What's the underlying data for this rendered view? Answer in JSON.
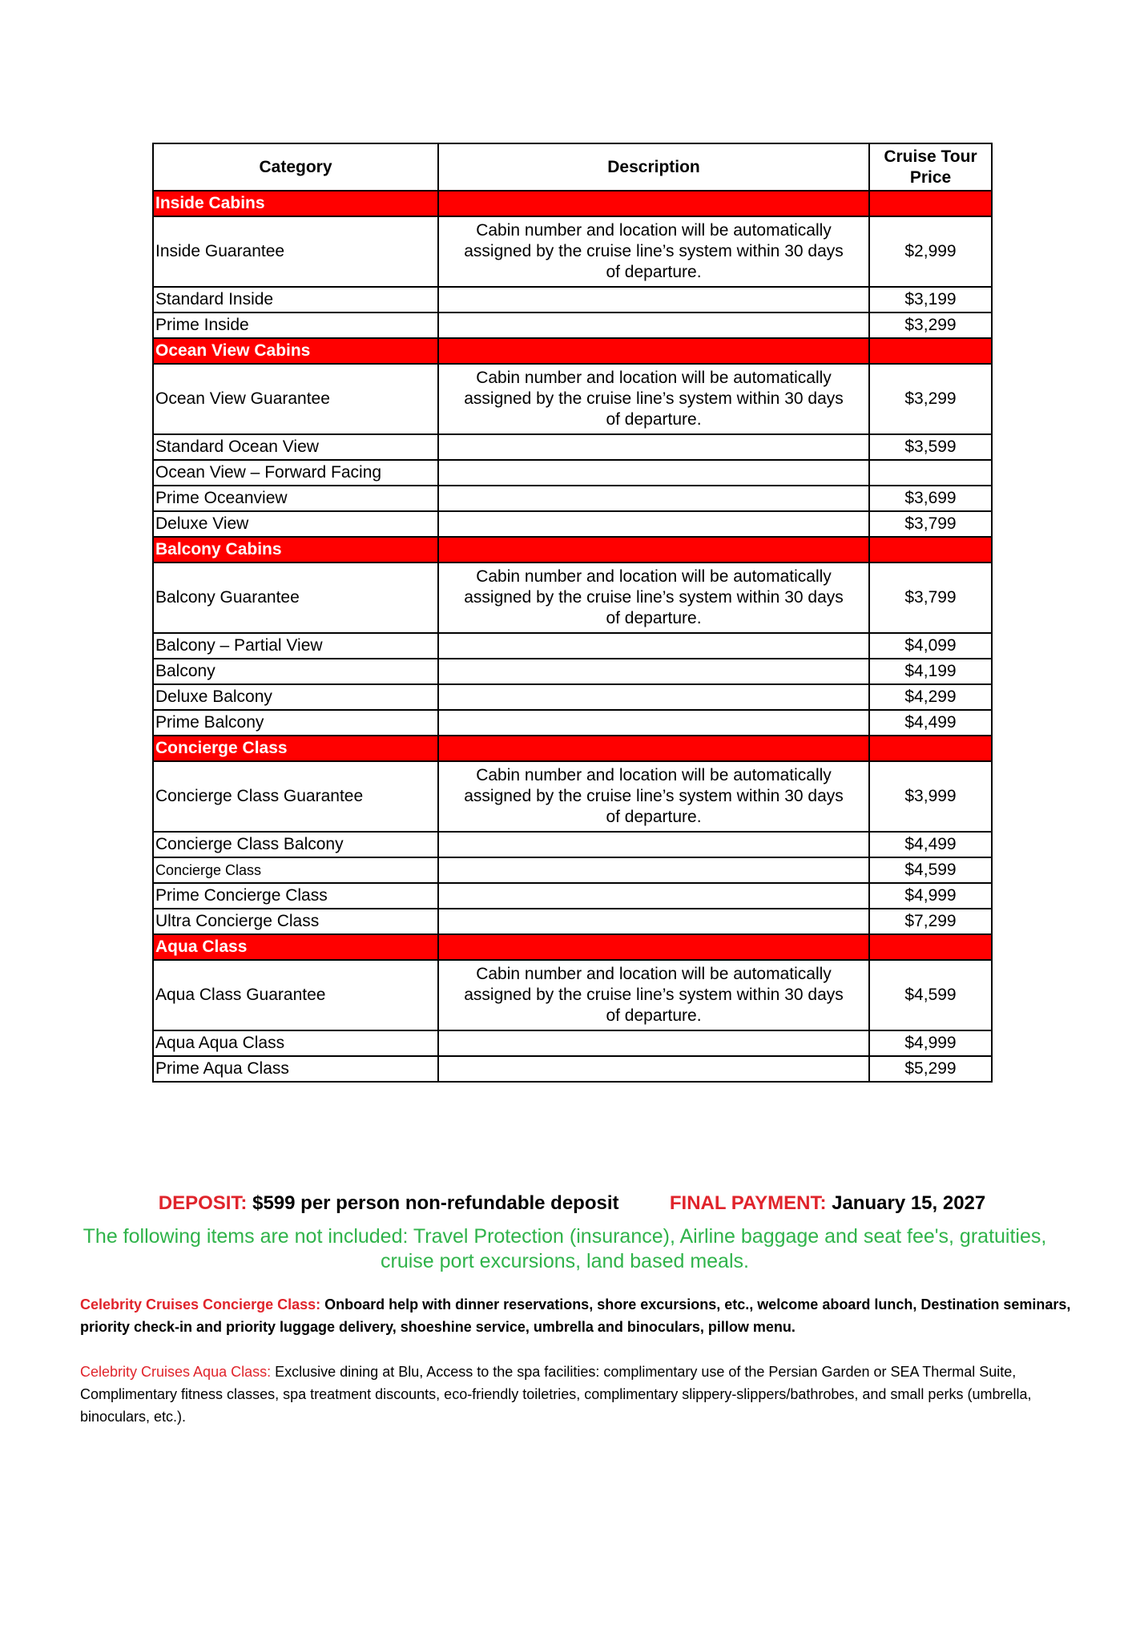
{
  "table": {
    "headers": [
      "Category",
      "Description",
      "Cruise Tour Price"
    ],
    "sections": [
      {
        "title": "Inside Cabins",
        "rows": [
          {
            "category": "Inside Guarantee",
            "description": "Cabin number and location will be automatically assigned by the cruise line’s system within 30 days of departure.",
            "price": "$2,999"
          },
          {
            "category": "Standard Inside",
            "description": "",
            "price": "$3,199"
          },
          {
            "category": "Prime Inside",
            "description": "",
            "price": "$3,299"
          }
        ]
      },
      {
        "title": "Ocean View Cabins",
        "rows": [
          {
            "category": "Ocean View Guarantee",
            "description": "Cabin number and location will be automatically assigned by the cruise line’s system within 30 days of departure.",
            "price": "$3,299"
          },
          {
            "category": "Standard Ocean View",
            "description": "",
            "price": "$3,599"
          },
          {
            "category": "Ocean View – Forward Facing",
            "description": "",
            "price": ""
          },
          {
            "category": "Prime Oceanview",
            "description": "",
            "price": "$3,699"
          },
          {
            "category": "Deluxe View",
            "description": "",
            "price": "$3,799"
          }
        ]
      },
      {
        "title": "Balcony Cabins",
        "rows": [
          {
            "category": "Balcony Guarantee",
            "description": "Cabin number and location will be automatically assigned by the cruise line’s system within 30 days of departure.",
            "price": "$3,799"
          },
          {
            "category": "Balcony – Partial View",
            "description": "",
            "price": "$4,099"
          },
          {
            "category": "Balcony",
            "description": "",
            "price": "$4,199"
          },
          {
            "category": "Deluxe Balcony",
            "description": "",
            "price": "$4,299"
          },
          {
            "category": "Prime Balcony",
            "description": "",
            "price": "$4,499"
          }
        ]
      },
      {
        "title": "Concierge Class",
        "rows": [
          {
            "category": "Concierge Class Guarantee",
            "description": "Cabin number and location will be automatically assigned by the cruise line’s system within 30 days of departure.",
            "price": "$3,999"
          },
          {
            "category": "Concierge Class Balcony",
            "description": "",
            "price": "$4,499"
          },
          {
            "category": "Concierge Class",
            "description": "",
            "price": "$4,599",
            "small": true
          },
          {
            "category": "Prime Concierge Class",
            "description": "",
            "price": "$4,999"
          },
          {
            "category": "Ultra Concierge Class",
            "description": "",
            "price": "$7,299"
          }
        ]
      },
      {
        "title": "Aqua Class",
        "rows": [
          {
            "category": "Aqua Class Guarantee",
            "description": "Cabin number and location will be automatically assigned by the cruise line’s system within 30 days of departure.",
            "price": "$4,599"
          },
          {
            "category": "Aqua Aqua Class",
            "description": "",
            "price": "$4,999"
          },
          {
            "category": "Prime Aqua Class",
            "description": "",
            "price": "$5,299"
          }
        ]
      }
    ]
  },
  "payment": {
    "deposit_label": "DEPOSIT:",
    "deposit_text": "$599 per person non-refundable deposit",
    "final_label": "FINAL PAYMENT:",
    "final_text": "January 15, 2027"
  },
  "not_included": "The following items are not included: Travel Protection (insurance), Airline baggage and seat fee's, gratuities, cruise port excursions, land based meals.",
  "concierge": {
    "label": "Celebrity Cruises Concierge Class:",
    "text": "Onboard help with dinner reservations, shore excursions, etc., welcome aboard lunch, Destination seminars, priority check-in and priority luggage delivery, shoeshine service, umbrella and binoculars, pillow menu."
  },
  "aqua": {
    "label": "Celebrity Cruises Aqua Class:",
    "text": "Exclusive dining at Blu, Access to the spa facilities: complimentary use of the Persian Garden or SEA Thermal Suite, Complimentary fitness classes, spa treatment discounts, eco-friendly toiletries, complimentary slippery-slippers/bathrobes, and small perks (umbrella, binoculars, etc.)."
  },
  "colors": {
    "section_bg": "#ff0000",
    "label_red": "#e0242b",
    "note_green": "#2fb34a"
  }
}
